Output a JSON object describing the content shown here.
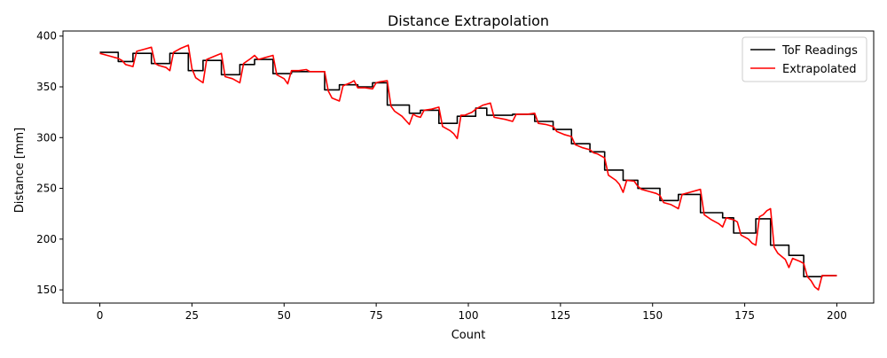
{
  "chart_data": {
    "type": "line",
    "title": "Distance Extrapolation",
    "xlabel": "Count",
    "ylabel": "Distance [mm]",
    "xlim": [
      -10,
      210
    ],
    "ylim": [
      137,
      405
    ],
    "xticks": [
      0,
      25,
      50,
      75,
      100,
      125,
      150,
      175,
      200
    ],
    "yticks": [
      150,
      200,
      250,
      300,
      350,
      400
    ],
    "grid": false,
    "legend_position": "top-right",
    "series": [
      {
        "name": "ToF Readings",
        "color": "#000000",
        "style": "step",
        "points": [
          [
            0,
            384
          ],
          [
            5,
            384
          ],
          [
            5,
            375
          ],
          [
            9,
            375
          ],
          [
            9,
            383
          ],
          [
            14,
            383
          ],
          [
            14,
            373
          ],
          [
            19,
            373
          ],
          [
            19,
            383
          ],
          [
            24,
            383
          ],
          [
            24,
            366
          ],
          [
            28,
            366
          ],
          [
            28,
            376
          ],
          [
            33,
            376
          ],
          [
            33,
            362
          ],
          [
            38,
            362
          ],
          [
            38,
            372
          ],
          [
            42,
            372
          ],
          [
            42,
            377
          ],
          [
            47,
            377
          ],
          [
            47,
            363
          ],
          [
            52,
            363
          ],
          [
            52,
            365
          ],
          [
            61,
            365
          ],
          [
            61,
            347
          ],
          [
            65,
            347
          ],
          [
            65,
            352
          ],
          [
            70,
            352
          ],
          [
            70,
            350
          ],
          [
            74,
            350
          ],
          [
            74,
            354
          ],
          [
            78,
            354
          ],
          [
            78,
            332
          ],
          [
            84,
            332
          ],
          [
            84,
            324
          ],
          [
            87,
            324
          ],
          [
            87,
            327
          ],
          [
            92,
            327
          ],
          [
            92,
            314
          ],
          [
            97,
            314
          ],
          [
            97,
            321
          ],
          [
            102,
            321
          ],
          [
            102,
            329
          ],
          [
            105,
            329
          ],
          [
            105,
            322
          ],
          [
            112,
            322
          ],
          [
            112,
            323
          ],
          [
            118,
            323
          ],
          [
            118,
            316
          ],
          [
            123,
            316
          ],
          [
            123,
            308
          ],
          [
            128,
            308
          ],
          [
            128,
            294
          ],
          [
            133,
            294
          ],
          [
            133,
            286
          ],
          [
            137,
            286
          ],
          [
            137,
            268
          ],
          [
            142,
            268
          ],
          [
            142,
            258
          ],
          [
            146,
            258
          ],
          [
            146,
            250
          ],
          [
            152,
            250
          ],
          [
            152,
            238
          ],
          [
            157,
            238
          ],
          [
            157,
            244
          ],
          [
            163,
            244
          ],
          [
            163,
            226
          ],
          [
            169,
            226
          ],
          [
            169,
            221
          ],
          [
            172,
            221
          ],
          [
            172,
            206
          ],
          [
            178,
            206
          ],
          [
            178,
            220
          ],
          [
            182,
            220
          ],
          [
            182,
            194
          ],
          [
            187,
            194
          ],
          [
            187,
            184
          ],
          [
            191,
            184
          ],
          [
            191,
            163
          ],
          [
            196,
            163
          ],
          [
            196,
            164
          ],
          [
            200,
            164
          ]
        ]
      },
      {
        "name": "Extrapolated",
        "color": "#ff0000",
        "style": "line",
        "points": [
          [
            0,
            383
          ],
          [
            2,
            381
          ],
          [
            4,
            379
          ],
          [
            5,
            378
          ],
          [
            6,
            376
          ],
          [
            7,
            372
          ],
          [
            9,
            370
          ],
          [
            10,
            385
          ],
          [
            12,
            387
          ],
          [
            14,
            389
          ],
          [
            15,
            373
          ],
          [
            16,
            371
          ],
          [
            18,
            369
          ],
          [
            19,
            366
          ],
          [
            20,
            384
          ],
          [
            22,
            388
          ],
          [
            24,
            391
          ],
          [
            25,
            368
          ],
          [
            26,
            359
          ],
          [
            28,
            354
          ],
          [
            29,
            377
          ],
          [
            31,
            380
          ],
          [
            33,
            383
          ],
          [
            34,
            360
          ],
          [
            36,
            358
          ],
          [
            38,
            354
          ],
          [
            39,
            373
          ],
          [
            41,
            378
          ],
          [
            42,
            381
          ],
          [
            43,
            377
          ],
          [
            45,
            379
          ],
          [
            47,
            381
          ],
          [
            48,
            362
          ],
          [
            50,
            358
          ],
          [
            51,
            353
          ],
          [
            52,
            366
          ],
          [
            54,
            366
          ],
          [
            56,
            367
          ],
          [
            57,
            365
          ],
          [
            61,
            365
          ],
          [
            62,
            346
          ],
          [
            63,
            339
          ],
          [
            65,
            336
          ],
          [
            66,
            351
          ],
          [
            68,
            354
          ],
          [
            69,
            356
          ],
          [
            70,
            349
          ],
          [
            72,
            349
          ],
          [
            74,
            348
          ],
          [
            75,
            354
          ],
          [
            76,
            355
          ],
          [
            78,
            356
          ],
          [
            79,
            331
          ],
          [
            80,
            326
          ],
          [
            82,
            321
          ],
          [
            84,
            313
          ],
          [
            85,
            323
          ],
          [
            86,
            321
          ],
          [
            87,
            320
          ],
          [
            88,
            327
          ],
          [
            90,
            328
          ],
          [
            92,
            330
          ],
          [
            93,
            311
          ],
          [
            95,
            307
          ],
          [
            96,
            304
          ],
          [
            97,
            299
          ],
          [
            98,
            322
          ],
          [
            99,
            322
          ],
          [
            101,
            325
          ],
          [
            102,
            328
          ],
          [
            104,
            332
          ],
          [
            106,
            334
          ],
          [
            107,
            320
          ],
          [
            110,
            318
          ],
          [
            112,
            316
          ],
          [
            113,
            323
          ],
          [
            116,
            323
          ],
          [
            118,
            324
          ],
          [
            119,
            314
          ],
          [
            121,
            313
          ],
          [
            123,
            311
          ],
          [
            124,
            306
          ],
          [
            126,
            303
          ],
          [
            128,
            301
          ],
          [
            129,
            293
          ],
          [
            131,
            290
          ],
          [
            133,
            288
          ],
          [
            134,
            285
          ],
          [
            135,
            284
          ],
          [
            136,
            282
          ],
          [
            137,
            280
          ],
          [
            138,
            263
          ],
          [
            140,
            258
          ],
          [
            141,
            254
          ],
          [
            142,
            246
          ],
          [
            143,
            258
          ],
          [
            145,
            257
          ],
          [
            146,
            252
          ],
          [
            147,
            249
          ],
          [
            149,
            247
          ],
          [
            151,
            245
          ],
          [
            152,
            243
          ],
          [
            153,
            236
          ],
          [
            155,
            234
          ],
          [
            156,
            232
          ],
          [
            157,
            230
          ],
          [
            158,
            244
          ],
          [
            160,
            246
          ],
          [
            162,
            248
          ],
          [
            163,
            249
          ],
          [
            164,
            224
          ],
          [
            166,
            219
          ],
          [
            168,
            215
          ],
          [
            169,
            212
          ],
          [
            170,
            221
          ],
          [
            172,
            219
          ],
          [
            173,
            217
          ],
          [
            174,
            204
          ],
          [
            176,
            200
          ],
          [
            177,
            196
          ],
          [
            178,
            194
          ],
          [
            179,
            222
          ],
          [
            180,
            224
          ],
          [
            181,
            228
          ],
          [
            182,
            230
          ],
          [
            183,
            192
          ],
          [
            184,
            186
          ],
          [
            186,
            180
          ],
          [
            187,
            172
          ],
          [
            188,
            181
          ],
          [
            190,
            178
          ],
          [
            191,
            176
          ],
          [
            192,
            163
          ],
          [
            193,
            159
          ],
          [
            194,
            153
          ],
          [
            195,
            150
          ],
          [
            196,
            164
          ],
          [
            200,
            164
          ]
        ]
      }
    ]
  }
}
